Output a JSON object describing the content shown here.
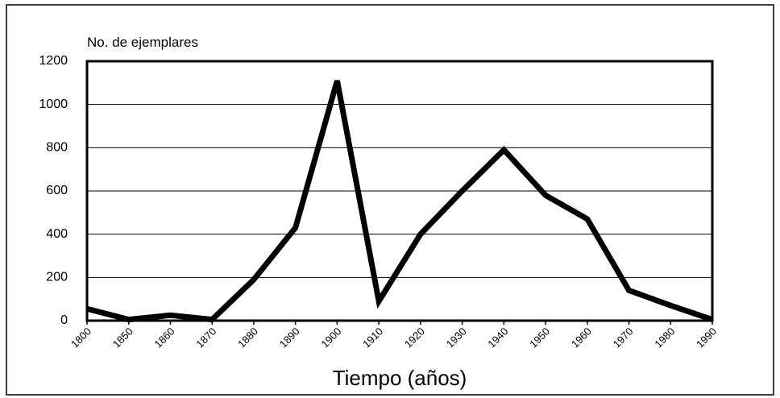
{
  "chart_data": {
    "type": "line",
    "y_label": "No. de ejemplares",
    "x_label": "Tiempo (años)",
    "categories": [
      "1800",
      "1850",
      "1860",
      "1870",
      "1880",
      "1890",
      "1900",
      "1910",
      "1920",
      "1930",
      "1940",
      "1950",
      "1960",
      "1970",
      "1980",
      "1990"
    ],
    "values": [
      55,
      5,
      25,
      5,
      190,
      430,
      1110,
      90,
      400,
      600,
      790,
      580,
      470,
      140,
      70,
      5
    ],
    "color": "#000000",
    "ylim": [
      0,
      1200
    ],
    "yticks": [
      0,
      200,
      400,
      600,
      800,
      1000,
      1200
    ],
    "grid": true
  }
}
